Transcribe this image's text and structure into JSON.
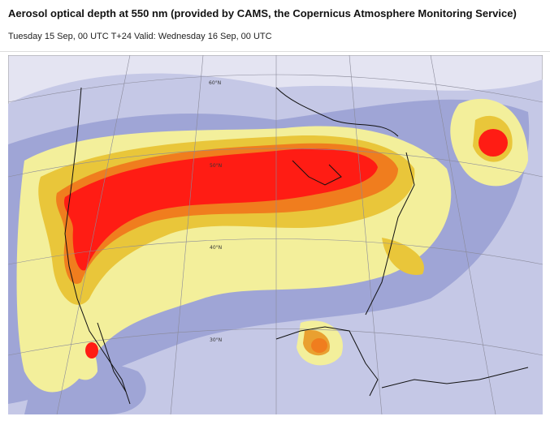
{
  "header": {
    "title": "Aerosol optical depth at 550 nm (provided by CAMS, the Copernicus Atmosphere Monitoring Service)",
    "subtitle": "Tuesday 15 Sep, 00 UTC T+24 Valid: Wednesday 16 Sep, 00 UTC"
  },
  "map": {
    "latitude_labels": [
      "60°N",
      "50°N",
      "40°N",
      "30°N"
    ]
  }
}
